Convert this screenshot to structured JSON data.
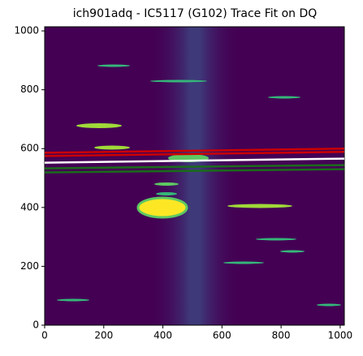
{
  "chart_data": {
    "type": "image",
    "title": "ich901adq - IC5117 (G102) Trace Fit on DQ",
    "xlim": [
      0,
      1014
    ],
    "ylim": [
      0,
      1014
    ],
    "xticks": [
      0,
      200,
      400,
      600,
      800,
      1000
    ],
    "yticks": [
      0,
      200,
      400,
      600,
      800,
      1000
    ],
    "lines": [
      {
        "color": "#cc0000",
        "x": [
          0,
          1014
        ],
        "y": [
          586,
          600
        ]
      },
      {
        "color": "#cc0000",
        "x": [
          0,
          1014
        ],
        "y": [
          575,
          589
        ]
      },
      {
        "color": "#ffffff",
        "x": [
          0,
          1014
        ],
        "y": [
          552,
          566
        ]
      },
      {
        "color": "#1a6b1a",
        "x": [
          0,
          1014
        ],
        "y": [
          533,
          544
        ]
      },
      {
        "color": "#1a6b1a",
        "x": [
          0,
          1014
        ],
        "y": [
          519,
          530
        ]
      }
    ]
  }
}
